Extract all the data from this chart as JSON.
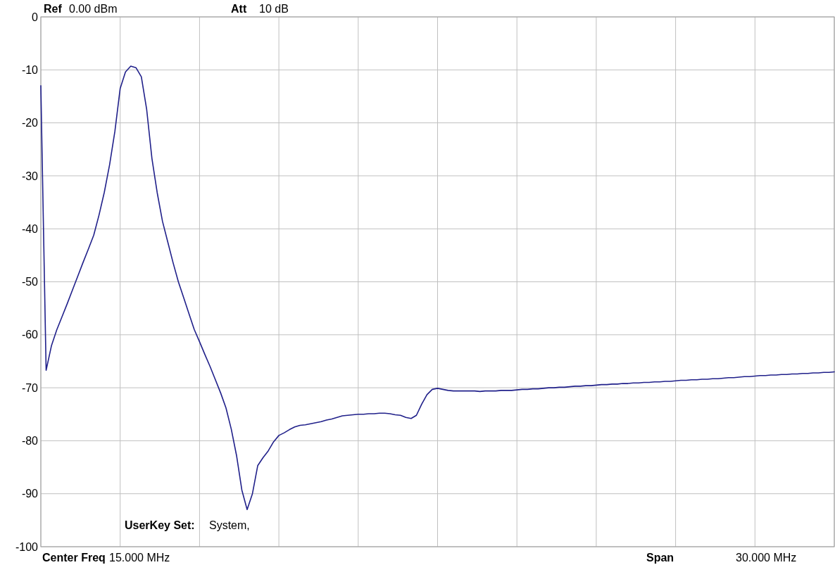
{
  "chart_data": {
    "type": "line",
    "categories": [
      null,
      null,
      null,
      null,
      null,
      null,
      null,
      null,
      null,
      null,
      null,
      null,
      null,
      null,
      null,
      null,
      null,
      null,
      null,
      null,
      null,
      null,
      null,
      null,
      null,
      null,
      null,
      null,
      null,
      null,
      null,
      null,
      null,
      null,
      null,
      null,
      null,
      null,
      null,
      null,
      null,
      null,
      null,
      null,
      null,
      null,
      null,
      null,
      null,
      null,
      null,
      null,
      null,
      null,
      null,
      null,
      null,
      null,
      null,
      null,
      null,
      null,
      null,
      null,
      null,
      null,
      null,
      null,
      null,
      null,
      null,
      null,
      null,
      null,
      null,
      null,
      null,
      null,
      null,
      null,
      null,
      null,
      null,
      null,
      null,
      null,
      null,
      null,
      null,
      null,
      null,
      null,
      null,
      null,
      null,
      null,
      null,
      null,
      null,
      null,
      null,
      null,
      null,
      null,
      null,
      null,
      null,
      null,
      null,
      null,
      null,
      null,
      null,
      null,
      null,
      null,
      null,
      null,
      null,
      null,
      null,
      null,
      null,
      null,
      null,
      null,
      null,
      null,
      null,
      null,
      null,
      null,
      null,
      null,
      null,
      null,
      null,
      null,
      null,
      null,
      null,
      null,
      null,
      null,
      null,
      null,
      null,
      null,
      null,
      null,
      null
    ],
    "series": [
      {
        "color": "#20208a",
        "values": [
          -13,
          -66.7,
          -62.1,
          -59.1,
          -56.6,
          -54.1,
          -51.5,
          -48.9,
          -46.3,
          -43.8,
          -41.2,
          -37.4,
          -33.1,
          -27.9,
          -21.6,
          -13.5,
          -10.4,
          -9.3,
          -9.6,
          -11.3,
          -17.4,
          -26.7,
          -33.2,
          -38.6,
          -42.5,
          -46.4,
          -50,
          -53,
          -56,
          -59,
          -61.3,
          -63.7,
          -66,
          -68.5,
          -71,
          -73.8,
          -77.8,
          -82.8,
          -89.3,
          -93,
          -90,
          -84.7,
          -83.2,
          -81.9,
          -80.2,
          -79,
          -78.5,
          -77.9,
          -77.4,
          -77.1,
          -77,
          -76.8,
          -76.6,
          -76.4,
          -76.1,
          -75.9,
          -75.6,
          -75.3,
          -75.2,
          -75.1,
          -75,
          -75,
          -74.9,
          -74.9,
          -74.8,
          -74.8,
          -74.9,
          -75.1,
          -75.2,
          -75.6,
          -75.8,
          -75.2,
          -73.1,
          -71.3,
          -70.3,
          -70.1,
          -70.3,
          -70.5,
          -70.6,
          -70.6,
          -70.6,
          -70.6,
          -70.6,
          -70.7,
          -70.6,
          -70.6,
          -70.6,
          -70.5,
          -70.5,
          -70.5,
          -70.4,
          -70.3,
          -70.3,
          -70.2,
          -70.2,
          -70.1,
          -70,
          -70,
          -69.9,
          -69.9,
          -69.8,
          -69.7,
          -69.7,
          -69.6,
          -69.6,
          -69.5,
          -69.4,
          -69.4,
          -69.3,
          -69.3,
          -69.2,
          -69.2,
          -69.1,
          -69.1,
          -69,
          -69,
          -68.9,
          -68.9,
          -68.8,
          -68.8,
          -68.7,
          -68.6,
          -68.6,
          -68.5,
          -68.5,
          -68.4,
          -68.4,
          -68.3,
          -68.3,
          -68.2,
          -68.1,
          -68.1,
          -68,
          -67.9,
          -67.9,
          -67.8,
          -67.7,
          -67.7,
          -67.6,
          -67.6,
          -67.5,
          -67.5,
          -67.4,
          -67.4,
          -67.3,
          -67.3,
          -67.2,
          -67.2,
          -67.1,
          -67.1,
          -67
        ]
      }
    ],
    "ylim": [
      -100,
      0
    ],
    "yticks": [
      0,
      -10,
      -20,
      -30,
      -40,
      -50,
      -60,
      -70,
      -80,
      -90,
      -100
    ],
    "grid": true,
    "tick_labels": "y",
    "line_style": "solid",
    "annotations": [
      "Ref",
      "0.00 dBm",
      "Att",
      "10 dB",
      "UserKey Set:",
      "System,",
      "Center Freq",
      "15.000 MHz",
      "Span",
      "30.000 MHz"
    ]
  }
}
